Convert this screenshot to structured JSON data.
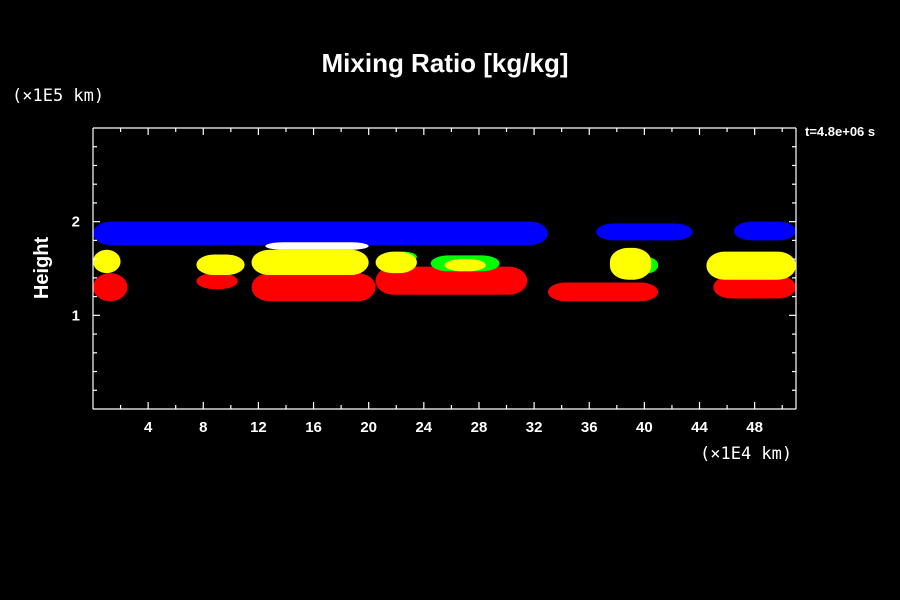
{
  "chart_data": {
    "type": "heatmap",
    "title": "Mixing Ratio [kg/kg]",
    "ylabel": "Height",
    "y_unit": "(×1E5 km)",
    "x_unit": "(×1E4 km)",
    "time_label": "t=4.8e+06 s",
    "xlim": [
      0,
      51
    ],
    "ylim": [
      0,
      3
    ],
    "x_ticks": [
      "4",
      "8",
      "12",
      "16",
      "20",
      "24",
      "28",
      "32",
      "36",
      "40",
      "44",
      "48"
    ],
    "y_ticks": [
      "1",
      "2"
    ],
    "colors": {
      "blue": "#0000ff",
      "yellow": "#ffff00",
      "red": "#ff0000",
      "green": "#00ff00",
      "white": "#ffffff"
    },
    "regions": [
      {
        "color": "blue",
        "x": [
          0,
          33
        ],
        "y": [
          1.75,
          2.0
        ]
      },
      {
        "color": "blue",
        "x": [
          36.5,
          43.5
        ],
        "y": [
          1.8,
          1.98
        ]
      },
      {
        "color": "blue",
        "x": [
          46.5,
          51
        ],
        "y": [
          1.8,
          2.0
        ]
      },
      {
        "color": "yellow",
        "x": [
          0,
          2
        ],
        "y": [
          1.45,
          1.7
        ]
      },
      {
        "color": "yellow",
        "x": [
          7.5,
          11
        ],
        "y": [
          1.43,
          1.65
        ]
      },
      {
        "color": "yellow",
        "x": [
          11.5,
          20
        ],
        "y": [
          1.43,
          1.7
        ]
      },
      {
        "color": "white",
        "x": [
          12.5,
          20
        ],
        "y": [
          1.7,
          1.78
        ]
      },
      {
        "color": "yellow",
        "x": [
          20.5,
          23.5
        ],
        "y": [
          1.45,
          1.68
        ]
      },
      {
        "color": "green",
        "x": [
          21.5,
          23.5
        ],
        "y": [
          1.57,
          1.68
        ]
      },
      {
        "color": "yellow",
        "x": [
          25.5,
          28.5
        ],
        "y": [
          1.47,
          1.6
        ]
      },
      {
        "color": "green",
        "x": [
          24.5,
          29.5
        ],
        "y": [
          1.47,
          1.64
        ]
      },
      {
        "color": "yellow",
        "x": [
          37.5,
          40.5
        ],
        "y": [
          1.38,
          1.72
        ]
      },
      {
        "color": "green",
        "x": [
          39.5,
          41
        ],
        "y": [
          1.45,
          1.62
        ]
      },
      {
        "color": "yellow",
        "x": [
          44.5,
          51
        ],
        "y": [
          1.38,
          1.68
        ]
      },
      {
        "color": "red",
        "x": [
          0,
          2.5
        ],
        "y": [
          1.15,
          1.45
        ]
      },
      {
        "color": "red",
        "x": [
          7.5,
          10.5
        ],
        "y": [
          1.28,
          1.45
        ]
      },
      {
        "color": "red",
        "x": [
          11.5,
          20.5
        ],
        "y": [
          1.15,
          1.45
        ]
      },
      {
        "color": "red",
        "x": [
          20.5,
          31.5
        ],
        "y": [
          1.22,
          1.52
        ]
      },
      {
        "color": "red",
        "x": [
          33,
          41
        ],
        "y": [
          1.15,
          1.35
        ]
      },
      {
        "color": "red",
        "x": [
          45,
          51
        ],
        "y": [
          1.18,
          1.42
        ]
      }
    ]
  }
}
